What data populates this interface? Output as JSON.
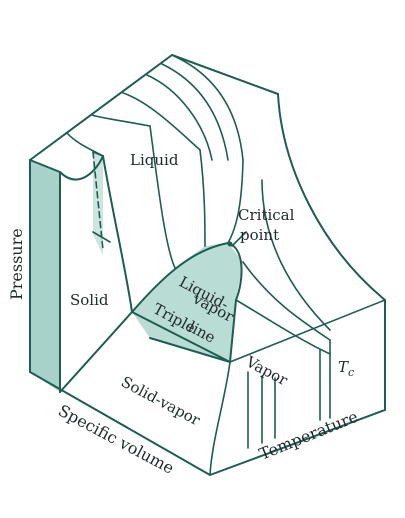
{
  "diagram": {
    "axes": {
      "pressure": "Pressure",
      "specific_volume": "Specific volume",
      "temperature": "Temperature"
    },
    "regions": {
      "solid": "Solid",
      "liquid": "Liquid",
      "vapor": "Vapor",
      "solid_vapor": "Solid-vapor",
      "liquid_vapor_line1": "Liquid-",
      "liquid_vapor_line2": "vapor",
      "triple_line_line1": "Triple",
      "triple_line_line2": "line"
    },
    "annotations": {
      "critical_point_line1": "Critical",
      "critical_point_line2": "point",
      "tc_main": "T",
      "tc_sub": "c"
    },
    "colors": {
      "line": "#1d5e52",
      "fill_light": "#cde5e0",
      "fill_dark": "#a7d2c9",
      "text": "#1f2a2a"
    }
  }
}
